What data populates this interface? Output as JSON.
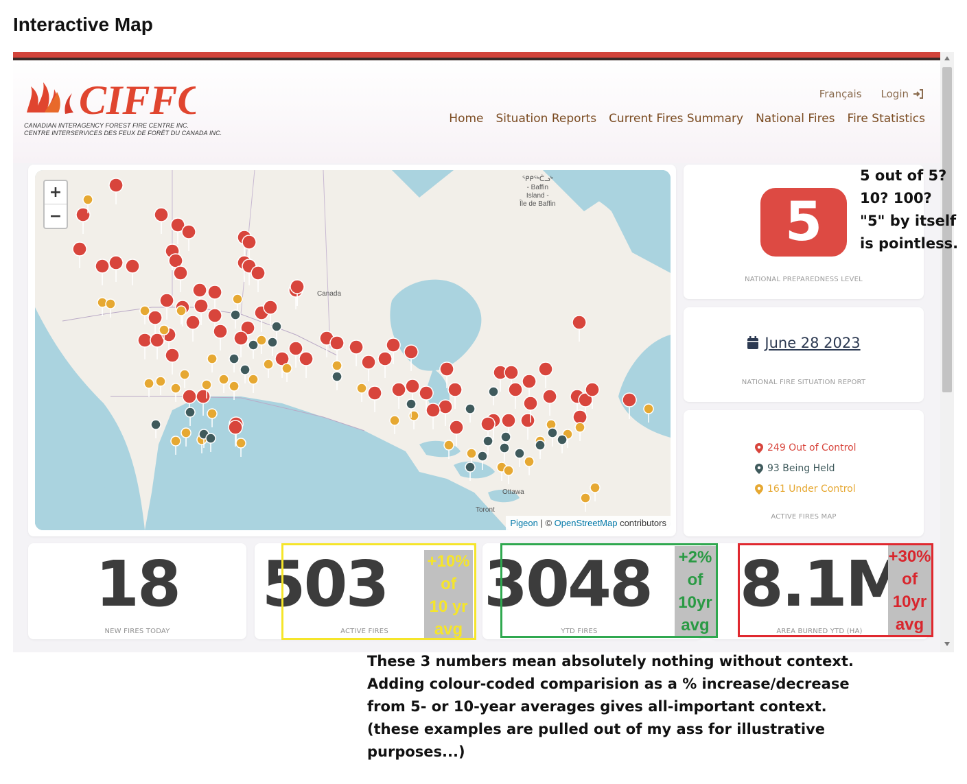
{
  "page_heading": "Interactive Map",
  "logo": {
    "text": "CIFFC",
    "subtitle_en": "CANADIAN INTERAGENCY FOREST FIRE CENTRE INC.",
    "subtitle_fr": "CENTRE INTERSERVICES DES FEUX DE FORÊT DU CANADA INC."
  },
  "header": {
    "util_links": {
      "language": "Français",
      "login": "Login"
    },
    "nav": [
      "Home",
      "Situation Reports",
      "Current Fires Summary",
      "National Fires",
      "Fire Statistics"
    ]
  },
  "map": {
    "zoom_in": "+",
    "zoom_out": "−",
    "labels": {
      "canada": "Canada",
      "baffin": "ᕿᑭᖅᑖᓗᒃ\n- Baffin\nIsland -\nÎle de Baffin",
      "ottawa": "Ottawa",
      "toronto": "Toront"
    },
    "attribution": {
      "pigeon": "Pigeon",
      "sep": " | © ",
      "osm": "OpenStreetMap",
      "suffix": " contributors"
    }
  },
  "preparedness": {
    "level": "5",
    "caption": "NATIONAL PREPAREDNESS LEVEL"
  },
  "report": {
    "date": "June 28 2023",
    "caption": "NATIONAL FIRE SITUATION REPORT"
  },
  "active_fires": {
    "legend": [
      {
        "text": "249 Out of Control",
        "color": "#d8453c"
      },
      {
        "text": "93 Being Held",
        "color": "#3f5a5c"
      },
      {
        "text": "161 Under Control",
        "color": "#e6a832"
      }
    ],
    "caption": "ACTIVE FIRES MAP"
  },
  "stats": [
    {
      "value": "18",
      "label": "NEW FIRES TODAY"
    },
    {
      "value": "503",
      "label": "ACTIVE FIRES"
    },
    {
      "value": "3048",
      "label": "YTD FIRES"
    },
    {
      "value": "8.1M",
      "label": "AREA BURNED YTD (HA)"
    }
  ],
  "annotations": {
    "boxes": [
      {
        "name": "active-fires",
        "color": "#f5e52a",
        "text_color": "#f5e52a",
        "tag": "+10%\nof\n10 yr\navg"
      },
      {
        "name": "ytd-fires",
        "color": "#2fa84f",
        "text_color": "#2a9a44",
        "tag": "+2%\nof\n10yr\navg"
      },
      {
        "name": "area-burned",
        "color": "#e0282f",
        "text_color": "#d8262d",
        "tag": "+30%\nof\n10yr\navg"
      }
    ],
    "pl_note": "5 out of 5?\n10?  100?\n\"5\" by itself\nis pointless.",
    "bottom_note": "These 3 numbers mean absolutely nothing without context.\nAdding colour-coded comparision as a % increase/decrease\nfrom 5- or 10-year averages gives all-important context.\n(these examples are pulled out of my ass for illustrative\npurposes...)"
  }
}
